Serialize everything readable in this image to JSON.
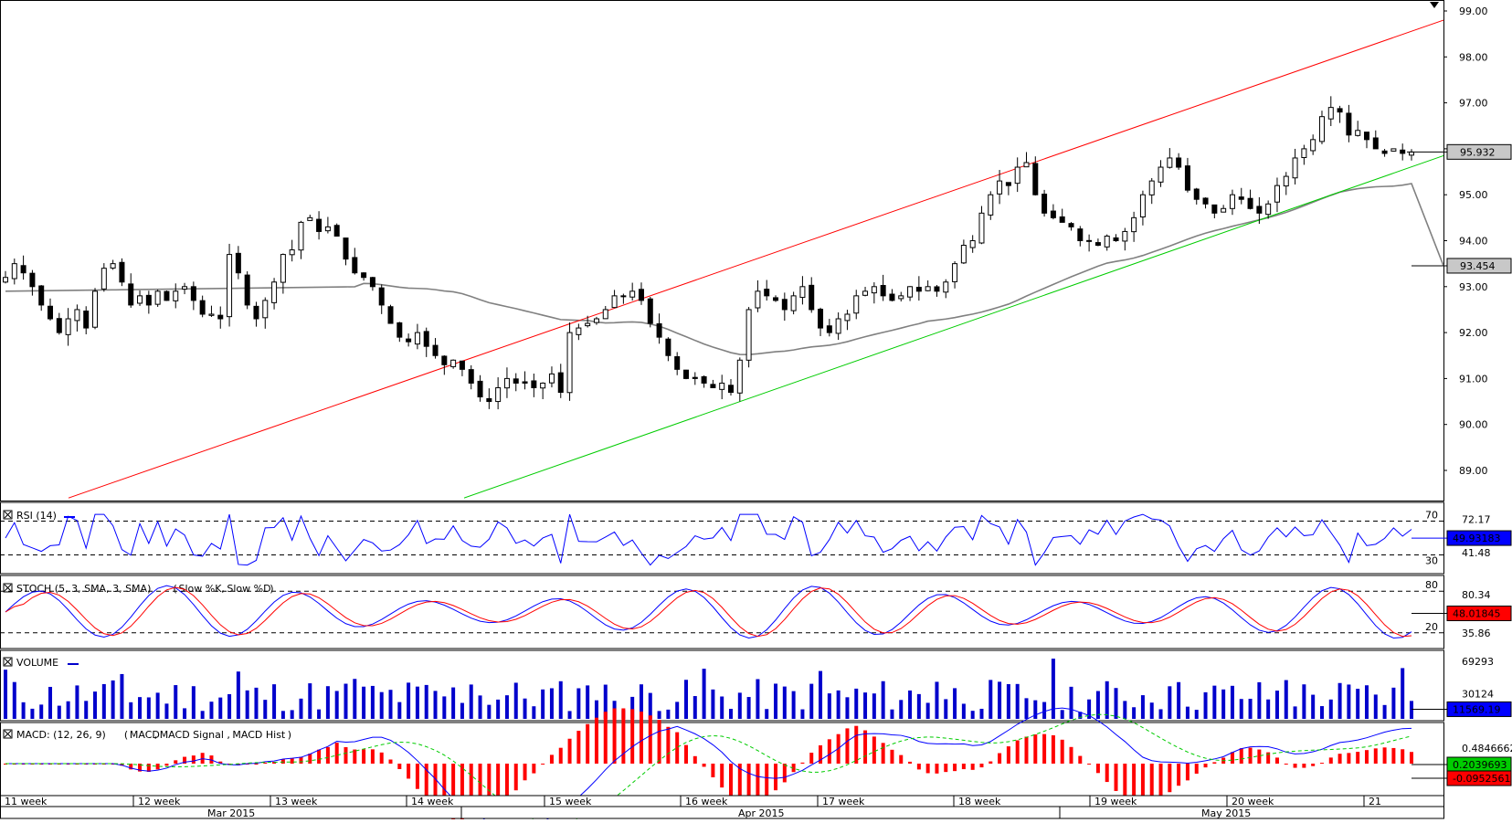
{
  "colors": {
    "price_up": "#ffffff",
    "price_down": "#000000",
    "resistance_line": "#ff0000",
    "support_line": "#00cc00",
    "moving_average": "#808080",
    "rsi_line": "#0000ff",
    "stoch_k": "#0000ff",
    "stoch_d": "#ff0000",
    "volume": "#0000cc",
    "macd": "#0000ff",
    "macd_signal": "#00cc00",
    "macd_hist": "#ff0000"
  },
  "chart_data": [
    {
      "type": "candlestick",
      "title": "",
      "yticks": [
        "99.00",
        "98.00",
        "97.00",
        "96.00",
        "95.00",
        "94.00",
        "93.00",
        "92.00",
        "91.00",
        "90.00",
        "89.00"
      ],
      "ylim": [
        88.4,
        99.2
      ],
      "last_price_label": "95.932",
      "last_price": 95.932,
      "ma_label": "93.454",
      "ma_value": 93.454,
      "ohlc_anchor_close": [
        93.2,
        93.5,
        93.3,
        93.0,
        92.6,
        92.3,
        92.0,
        92.3,
        92.5,
        92.1,
        92.9,
        93.4,
        93.5,
        93.1,
        92.6,
        92.8,
        92.6,
        92.9,
        92.7,
        92.9,
        93.0,
        92.7,
        92.4,
        92.4,
        92.3,
        93.7,
        93.3,
        92.6,
        92.3,
        92.7,
        93.1,
        93.7,
        93.8,
        94.4,
        94.5,
        94.2,
        94.3,
        94.1,
        93.6,
        93.3,
        93.2,
        93.0,
        92.6,
        92.2,
        91.9,
        91.8,
        92.0,
        91.7,
        91.5,
        91.3,
        91.4,
        91.2,
        90.9,
        90.6,
        90.5,
        90.8,
        91.0,
        90.9,
        90.9,
        90.8,
        90.9,
        91.1,
        90.7,
        92.0,
        92.1,
        92.2,
        92.3,
        92.5,
        92.8,
        92.8,
        92.9,
        92.7,
        92.2,
        91.9,
        91.5,
        91.2,
        91.0,
        91.0,
        90.9,
        90.8,
        90.9,
        90.7,
        91.4,
        92.5,
        92.9,
        92.8,
        92.7,
        92.5,
        92.8,
        93.0,
        92.5,
        92.1,
        92.0,
        92.3,
        92.4,
        92.8,
        92.9,
        93.0,
        92.8,
        92.7,
        92.8,
        93.0,
        92.9,
        93.0,
        92.9,
        93.1,
        93.5,
        93.9,
        94.0,
        94.6,
        95.0,
        95.3,
        95.2,
        95.6,
        95.7,
        95.0,
        94.6,
        94.5,
        94.4,
        94.3,
        94.0,
        94.0,
        93.9,
        94.1,
        94.0,
        94.2,
        94.5,
        95.0,
        95.3,
        95.6,
        95.8,
        95.6,
        95.1,
        94.9,
        94.8,
        94.6,
        94.7,
        95.0,
        94.9,
        94.7,
        94.6,
        94.8,
        95.2,
        95.4,
        95.8,
        96.0,
        96.2,
        96.7,
        96.9,
        96.8,
        96.3,
        96.4,
        96.2,
        96.0,
        95.9,
        96.0,
        95.9,
        95.93
      ]
    },
    {
      "type": "line",
      "title": "RSI (14)",
      "levels": [
        "70",
        "30"
      ],
      "axis_labels": [
        "72.17",
        "41.48"
      ],
      "value_label": "49.93183",
      "value": 49.93183
    },
    {
      "type": "line",
      "title": "STOCH (5, 3, SMA, 3, SMA)",
      "legend": [
        "Slow %K",
        "Slow %D"
      ],
      "levels": [
        "80",
        "20"
      ],
      "axis_labels": [
        "80.34",
        "35.86"
      ],
      "value_label": "48.01845",
      "value": 48.01845
    },
    {
      "type": "bar",
      "title": "VOLUME",
      "axis_labels": [
        "69293",
        "30124"
      ],
      "value_label": "11569.19",
      "value": 11569.19
    },
    {
      "type": "line",
      "title": "MACD: (12, 26, 9)",
      "legend": [
        "MACD",
        "MACD Signal",
        "MACD Hist"
      ],
      "axis_labels": [
        "0.4846662"
      ],
      "macd_label": "0.2039693",
      "signal_label": "-0.0952561"
    }
  ],
  "xaxis": {
    "weeks": [
      "11 week",
      "12 week",
      "13 week",
      "14 week",
      "15 week",
      "16 week",
      "17 week",
      "18 week",
      "19 week",
      "20 week",
      "21"
    ],
    "months": [
      "Mar 2015",
      "Apr 2015",
      "May 2015"
    ]
  }
}
